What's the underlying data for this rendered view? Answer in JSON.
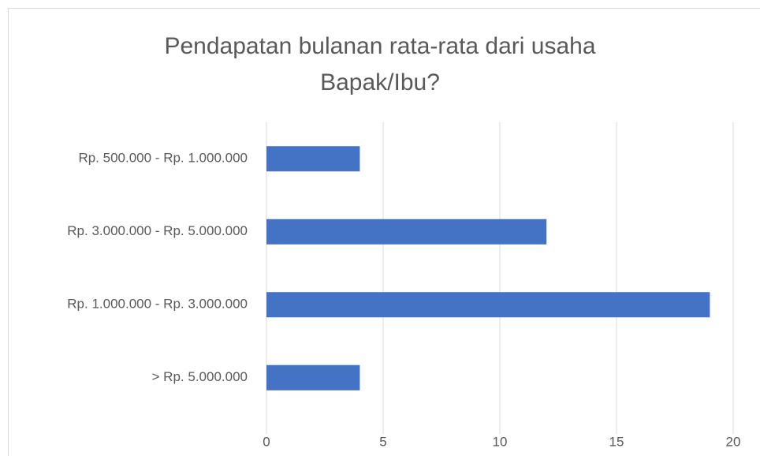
{
  "chart_data": {
    "type": "barh",
    "title": "Pendapatan bulanan rata-rata dari usaha Bapak/Ibu?",
    "categories": [
      "Rp. 500.000 - Rp. 1.000.000",
      "Rp. 3.000.000 - Rp. 5.000.000",
      "Rp. 1.000.000 - Rp. 3.000.000",
      "> Rp. 5.000.000"
    ],
    "values": [
      4,
      12,
      19,
      4
    ],
    "color": "#4472c4",
    "xlim": [
      0,
      20
    ],
    "xticks": [
      0,
      5,
      10,
      15,
      20
    ],
    "grid": true
  }
}
